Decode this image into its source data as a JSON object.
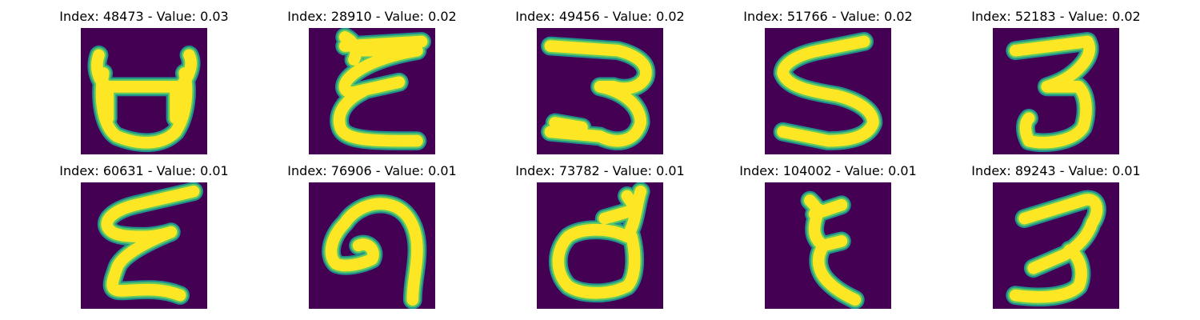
{
  "colors": {
    "background": "#440154",
    "stroke_edge": "#21918c",
    "stroke_mid": "#5ec962",
    "stroke_core": "#fde725"
  },
  "panels": [
    {
      "title": "Index: 48473 - Value: 0.03"
    },
    {
      "title": "Index: 28910 - Value: 0.02"
    },
    {
      "title": "Index: 49456 - Value: 0.02"
    },
    {
      "title": "Index: 51766 - Value: 0.02"
    },
    {
      "title": "Index: 52183 - Value: 0.02"
    },
    {
      "title": "Index: 60631 - Value: 0.01"
    },
    {
      "title": "Index: 76906 - Value: 0.01"
    },
    {
      "title": "Index: 73782 - Value: 0.01"
    },
    {
      "title": "Index: 104002 - Value: 0.01"
    },
    {
      "title": "Index: 89243 - Value: 0.01"
    }
  ]
}
